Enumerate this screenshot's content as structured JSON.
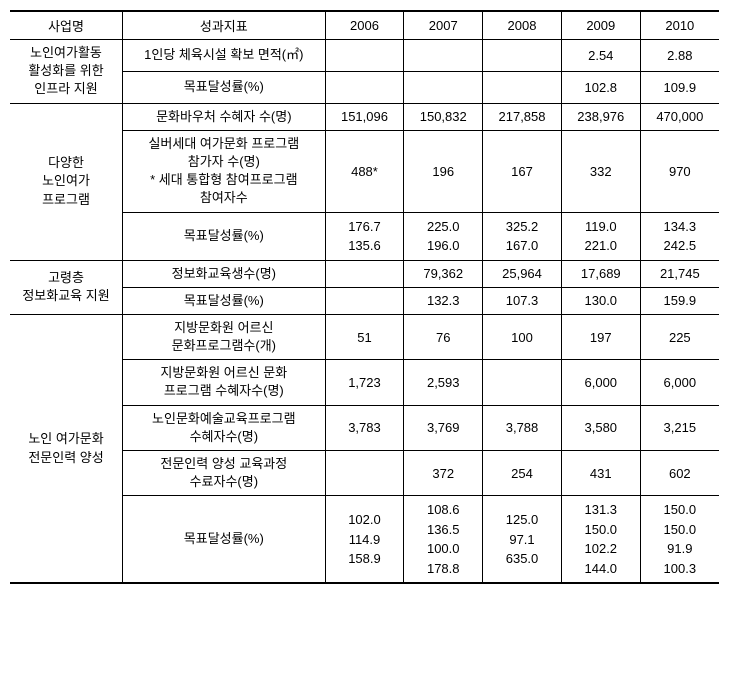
{
  "headers": {
    "biz": "사업명",
    "ind": "성과지표",
    "y2006": "2006",
    "y2007": "2007",
    "y2008": "2008",
    "y2009": "2009",
    "y2010": "2010"
  },
  "g1": {
    "name": "노인여가활동\n활성화를 위한\n인프라 지원",
    "r1": {
      "ind": "1인당 체육시설 확보 면적(㎡)",
      "c06": "",
      "c07": "",
      "c08": "",
      "c09": "2.54",
      "c10": "2.88"
    },
    "r2": {
      "ind": "목표달성률(%)",
      "c06": "",
      "c07": "",
      "c08": "",
      "c09": "102.8",
      "c10": "109.9"
    }
  },
  "g2": {
    "name": "다양한\n노인여가\n프로그램",
    "r1": {
      "ind": "문화바우처 수혜자 수(명)",
      "c06": "151,096",
      "c07": "150,832",
      "c08": "217,858",
      "c09": "238,976",
      "c10": "470,000"
    },
    "r2": {
      "ind": "실버세대 여가문화 프로그램\n참가자 수(명)\n* 세대 통합형 참여프로그램\n참여자수",
      "c06": "488*",
      "c07": "196",
      "c08": "167",
      "c09": "332",
      "c10": "970"
    },
    "r3": {
      "ind": "목표달성률(%)",
      "c06a": "176.7",
      "c06b": "135.6",
      "c07a": "225.0",
      "c07b": "196.0",
      "c08a": "325.2",
      "c08b": "167.0",
      "c09a": "119.0",
      "c09b": "221.0",
      "c10a": "134.3",
      "c10b": "242.5"
    }
  },
  "g3": {
    "name": "고령층\n정보화교육 지원",
    "r1": {
      "ind": "정보화교육생수(명)",
      "c06": "",
      "c07": "79,362",
      "c08": "25,964",
      "c09": "17,689",
      "c10": "21,745"
    },
    "r2": {
      "ind": "목표달성률(%)",
      "c06": "",
      "c07": "132.3",
      "c08": "107.3",
      "c09": "130.0",
      "c10": "159.9"
    }
  },
  "g4": {
    "name": "노인 여가문화\n전문인력 양성",
    "r1": {
      "ind": "지방문화원 어르신\n문화프로그램수(개)",
      "c06": "51",
      "c07": "76",
      "c08": "100",
      "c09": "197",
      "c10": "225"
    },
    "r2": {
      "ind": "지방문화원 어르신 문화\n프로그램 수혜자수(명)",
      "c06": "1,723",
      "c07": "2,593",
      "c08": "",
      "c09": "6,000",
      "c10": "6,000"
    },
    "r3": {
      "ind": "노인문화예술교육프로그램\n수혜자수(명)",
      "c06": "3,783",
      "c07": "3,769",
      "c08": "3,788",
      "c09": "3,580",
      "c10": "3,215"
    },
    "r4": {
      "ind": "전문인력 양성 교육과정\n수료자수(명)",
      "c06": "",
      "c07": "372",
      "c08": "254",
      "c09": "431",
      "c10": "602"
    },
    "r5": {
      "ind": "목표달성률(%)",
      "c06a": "102.0",
      "c06b": "114.9",
      "c06c": "158.9",
      "c06d": "",
      "c07a": "108.6",
      "c07b": "136.5",
      "c07c": "100.0",
      "c07d": "178.8",
      "c08a": "125.0",
      "c08b": "",
      "c08c": "97.1",
      "c08d": "635.0",
      "c09a": "131.3",
      "c09b": "150.0",
      "c09c": "102.2",
      "c09d": "144.0",
      "c10a": "150.0",
      "c10b": "150.0",
      "c10c": "91.9",
      "c10d": "100.3"
    }
  }
}
